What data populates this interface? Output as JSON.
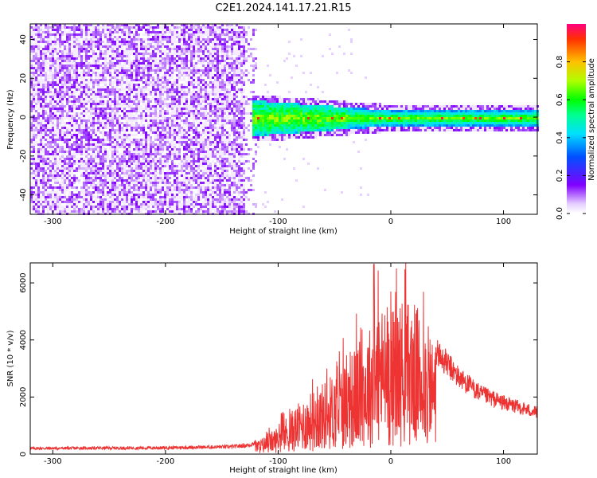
{
  "title": "C2E1.2024.141.17.21.R15",
  "chart_data": [
    {
      "type": "heatmap",
      "name": "spectrogram",
      "title": "C2E1.2024.141.17.21.R15",
      "xlabel": "Height of straight line (km)",
      "ylabel": "Frequency (Hz)",
      "xlim": [
        -320,
        130
      ],
      "ylim": [
        -50,
        48
      ],
      "xticks": [
        -300,
        -200,
        -100,
        0,
        100
      ],
      "yticks": [
        -40,
        -20,
        0,
        20,
        40
      ],
      "noise_region_km": [
        -320,
        -120
      ],
      "signal_region_km": [
        -125,
        130
      ],
      "signal_center_hz": 0,
      "signal_halfwidth_hz_at_minus120": 9,
      "signal_halfwidth_hz_at_0": 4,
      "colorbar": {
        "label": "Normalized spectral amplitude",
        "range": [
          0.0,
          1.0
        ],
        "ticks": [
          0.0,
          0.2,
          0.4,
          0.6,
          0.8
        ]
      }
    },
    {
      "type": "line",
      "name": "snr",
      "xlabel": "Height of straight line (km)",
      "ylabel": "SNR (10 * v/v)",
      "xlim": [
        -320,
        130
      ],
      "ylim": [
        0,
        6700
      ],
      "xticks": [
        -300,
        -200,
        -100,
        0,
        100
      ],
      "yticks": [
        0,
        2000,
        4000,
        6000
      ],
      "series": [
        {
          "name": "SNR",
          "color": "#ee3333",
          "envelope_x": [
            -320,
            -200,
            -140,
            -125,
            -110,
            -100,
            -80,
            -60,
            -40,
            -20,
            -10,
            0,
            10,
            20,
            30,
            40,
            60,
            80,
            100,
            130
          ],
          "envelope_y": [
            200,
            220,
            260,
            320,
            600,
            900,
            1700,
            2300,
            3000,
            4000,
            4800,
            4600,
            5000,
            4900,
            4300,
            3600,
            2700,
            2100,
            1800,
            1450
          ],
          "peak_y": 6650
        }
      ]
    }
  ],
  "colors": {
    "snr_line": "#ee3333",
    "background": "#ffffff",
    "axes": "#000000"
  }
}
